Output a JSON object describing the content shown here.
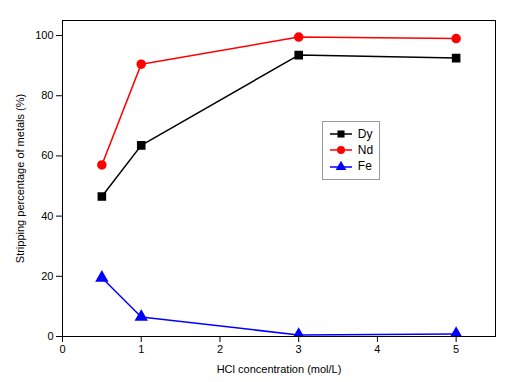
{
  "chart_data": {
    "type": "line",
    "xlabel": "HCl concentration (mol/L)",
    "ylabel": "Stripping percentage of metals (%)",
    "x": [
      0.5,
      1.0,
      3.0,
      5.0
    ],
    "series": [
      {
        "name": "Dy",
        "color": "#000000",
        "marker": "square",
        "values": [
          46.5,
          63.5,
          93.5,
          92.5
        ]
      },
      {
        "name": "Nd",
        "color": "#ff0000",
        "marker": "circle",
        "values": [
          57.0,
          90.5,
          99.5,
          99.0
        ]
      },
      {
        "name": "Fe",
        "color": "#0000ff",
        "marker": "triangle",
        "values": [
          19.5,
          6.5,
          0.5,
          0.8
        ]
      }
    ],
    "xlim": [
      0,
      5.5
    ],
    "ylim": [
      0,
      105
    ],
    "xticks": [
      0,
      1,
      2,
      3,
      4,
      5
    ],
    "yticks": [
      0,
      20,
      40,
      60,
      80,
      100
    ],
    "grid": false,
    "legend": "center right"
  }
}
